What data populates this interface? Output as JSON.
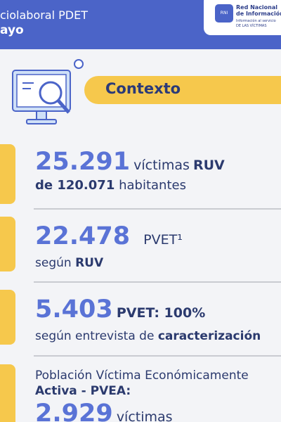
{
  "header": {
    "title_line1": "ciolaboral PDET",
    "title_line2": "ayo"
  },
  "logo": {
    "badge": "RNI",
    "name_line1": "Red Nacional",
    "name_line2": "de Información",
    "tagline_line1": "Información al servicio",
    "tagline_line2": "DE LAS VÍCTIMAS"
  },
  "section": {
    "title": "Contexto"
  },
  "items": [
    {
      "number": "25.291",
      "text": "víctimas",
      "strong": "RUV",
      "line2_strong": "de 120.071",
      "line2": "habitantes"
    },
    {
      "number": "22.478",
      "text": "PVET¹",
      "line2": "según",
      "line2_strong": "RUV"
    },
    {
      "number": "5.403",
      "strong": "PVET: 100%",
      "line2": "según entrevista de",
      "line2_strong": "caracterización"
    },
    {
      "line1": "Población Víctima Económicamente",
      "line2": "Activa - PVEA:",
      "number": "2.929",
      "text": "víctimas"
    }
  ]
}
